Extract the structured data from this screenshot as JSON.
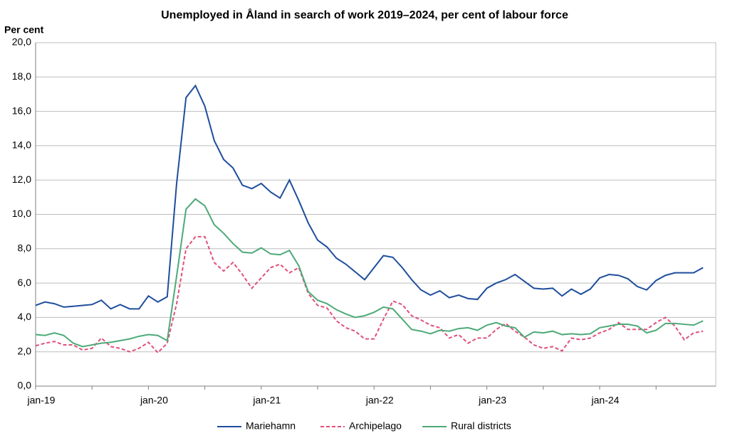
{
  "chart_data": {
    "type": "line",
    "title": "Unemployed in Åland in search of work 2019–2024,  per cent of labour force",
    "y_label": "Per cent",
    "categories": [
      "jan-19",
      null,
      null,
      null,
      null,
      null,
      null,
      null,
      null,
      null,
      null,
      null,
      "jan-20",
      null,
      null,
      null,
      null,
      null,
      null,
      null,
      null,
      null,
      null,
      null,
      "jan-21",
      null,
      null,
      null,
      null,
      null,
      null,
      null,
      null,
      null,
      null,
      null,
      "jan-22",
      null,
      null,
      null,
      null,
      null,
      null,
      null,
      null,
      null,
      null,
      null,
      "jan-23",
      null,
      null,
      null,
      null,
      null,
      null,
      null,
      null,
      null,
      null,
      null,
      "jan-24",
      null,
      null,
      null,
      null,
      null,
      null,
      null,
      null,
      null,
      null,
      null
    ],
    "series": [
      {
        "name": "Mariehamn",
        "color": "#1f4e9c",
        "dash": false,
        "values": [
          4.7,
          4.9,
          4.8,
          4.6,
          4.65,
          4.7,
          4.75,
          5.0,
          4.5,
          4.75,
          4.5,
          4.5,
          5.25,
          4.9,
          5.2,
          11.8,
          16.8,
          17.5,
          16.3,
          14.3,
          13.2,
          12.7,
          11.7,
          11.5,
          11.8,
          11.3,
          10.95,
          12.0,
          10.8,
          9.5,
          8.5,
          8.1,
          7.45,
          7.1,
          6.65,
          6.2,
          6.9,
          7.6,
          7.5,
          6.9,
          6.2,
          5.6,
          5.3,
          5.55,
          5.15,
          5.3,
          5.1,
          5.05,
          5.7,
          6.0,
          6.2,
          6.5,
          6.1,
          5.7,
          5.65,
          5.7,
          5.25,
          5.65,
          5.35,
          5.65,
          6.3,
          6.5,
          6.45,
          6.25,
          5.8,
          5.6,
          6.15,
          6.45,
          6.6,
          6.6,
          6.6,
          6.9
        ]
      },
      {
        "name": "Archipelago",
        "color": "#e0507a",
        "dash": true,
        "values": [
          2.35,
          2.5,
          2.6,
          2.4,
          2.4,
          2.1,
          2.2,
          2.8,
          2.3,
          2.2,
          2.0,
          2.2,
          2.55,
          1.95,
          2.5,
          4.8,
          8.0,
          8.7,
          8.7,
          7.2,
          6.7,
          7.2,
          6.5,
          5.7,
          6.3,
          6.9,
          7.1,
          6.6,
          6.9,
          5.4,
          4.7,
          4.55,
          3.8,
          3.4,
          3.2,
          2.75,
          2.75,
          3.9,
          4.95,
          4.75,
          4.1,
          3.85,
          3.55,
          3.4,
          2.8,
          3.0,
          2.5,
          2.8,
          2.8,
          3.3,
          3.65,
          3.2,
          2.85,
          2.4,
          2.2,
          2.3,
          2.05,
          2.8,
          2.7,
          2.8,
          3.1,
          3.3,
          3.7,
          3.3,
          3.3,
          3.3,
          3.7,
          4.0,
          3.5,
          2.7,
          3.1,
          3.2
        ]
      },
      {
        "name": "Rural districts",
        "color": "#4daa78",
        "dash": false,
        "values": [
          3.0,
          2.95,
          3.1,
          2.95,
          2.5,
          2.3,
          2.4,
          2.5,
          2.55,
          2.65,
          2.75,
          2.9,
          3.0,
          2.95,
          2.65,
          6.4,
          10.3,
          10.9,
          10.5,
          9.4,
          8.9,
          8.3,
          7.8,
          7.75,
          8.05,
          7.7,
          7.65,
          7.9,
          7.0,
          5.5,
          5.0,
          4.8,
          4.45,
          4.2,
          4.0,
          4.1,
          4.3,
          4.6,
          4.5,
          3.9,
          3.3,
          3.2,
          3.05,
          3.25,
          3.2,
          3.35,
          3.4,
          3.25,
          3.55,
          3.7,
          3.5,
          3.4,
          2.85,
          3.15,
          3.1,
          3.2,
          3.0,
          3.05,
          3.0,
          3.05,
          3.4,
          3.5,
          3.6,
          3.6,
          3.5,
          3.1,
          3.25,
          3.65,
          3.65,
          3.6,
          3.55,
          3.8
        ]
      }
    ],
    "ylim": [
      0,
      20
    ],
    "yticks": [
      {
        "value": 0,
        "label": "0,0"
      },
      {
        "value": 2,
        "label": "2,0"
      },
      {
        "value": 4,
        "label": "4,0"
      },
      {
        "value": 6,
        "label": "6,0"
      },
      {
        "value": 8,
        "label": "8,0"
      },
      {
        "value": 10,
        "label": "10,0"
      },
      {
        "value": 12,
        "label": "12,0"
      },
      {
        "value": 14,
        "label": "14,0"
      },
      {
        "value": 16,
        "label": "16,0"
      },
      {
        "value": 18,
        "label": "18,0"
      },
      {
        "value": 20,
        "label": "20,0"
      }
    ],
    "grid": true,
    "legend": "bottom"
  }
}
